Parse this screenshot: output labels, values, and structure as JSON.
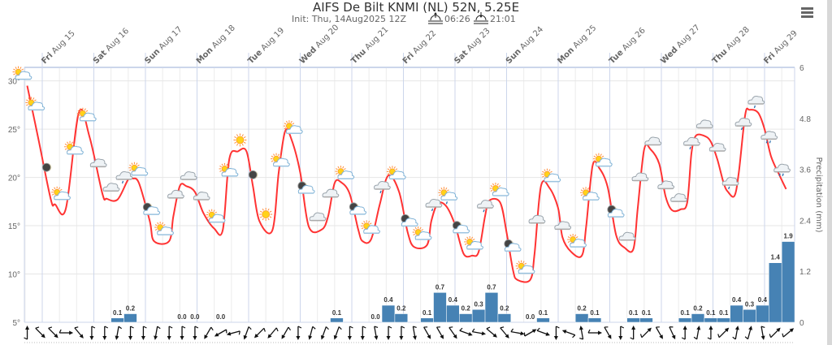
{
  "title": "AIFS De Bilt KNMI (NL) 52N, 5.25E",
  "subtitle": {
    "init": "Init: Thu, 14Aug2025 12Z",
    "sunrise": "06:26",
    "sunset": "21:01"
  },
  "menu_icon": "hamburger-icon",
  "colors": {
    "temperature": "#ff3333",
    "precipitation": "#4682b4",
    "grid": "#e6e6e6",
    "plot_border": "#ccd6eb"
  },
  "chart_data": {
    "type": "line+bar",
    "title": "AIFS De Bilt KNMI (NL) 52N, 5.25E",
    "x_range": [
      "Aug 14 14:00",
      "Aug 29 14:00"
    ],
    "days": [
      {
        "wd": "Fri",
        "date": "Aug 15",
        "t": "Aug 15 00:00"
      },
      {
        "wd": "Sat",
        "date": "Aug 16",
        "t": "Aug 16 00:00"
      },
      {
        "wd": "Sun",
        "date": "Aug 17",
        "t": "Aug 17 00:00"
      },
      {
        "wd": "Mon",
        "date": "Aug 18",
        "t": "Aug 18 00:00"
      },
      {
        "wd": "Tue",
        "date": "Aug 19",
        "t": "Aug 19 00:00"
      },
      {
        "wd": "Wed",
        "date": "Aug 20",
        "t": "Aug 20 00:00"
      },
      {
        "wd": "Thu",
        "date": "Aug 21",
        "t": "Aug 21 00:00"
      },
      {
        "wd": "Fri",
        "date": "Aug 22",
        "t": "Aug 22 00:00"
      },
      {
        "wd": "Sat",
        "date": "Aug 23",
        "t": "Aug 23 00:00"
      },
      {
        "wd": "Sun",
        "date": "Aug 24",
        "t": "Aug 24 00:00"
      },
      {
        "wd": "Mon",
        "date": "Aug 25",
        "t": "Aug 25 00:00"
      },
      {
        "wd": "Tue",
        "date": "Aug 26",
        "t": "Aug 26 00:00"
      },
      {
        "wd": "Wed",
        "date": "Aug 27",
        "t": "Aug 27 00:00"
      },
      {
        "wd": "Thu",
        "date": "Aug 28",
        "t": "Aug 28 00:00"
      },
      {
        "wd": "Fri",
        "date": "Aug 29",
        "t": "Aug 29 00:00"
      }
    ],
    "temperature_axis": {
      "ticks": [
        "5°",
        "10°",
        "15°",
        "20°",
        "25°",
        "30°"
      ],
      "tick_values": [
        5,
        10,
        15,
        20,
        25,
        30
      ],
      "range": [
        5,
        31.4
      ]
    },
    "precip_axis": {
      "title": "Precipitation (mm)",
      "ticks": [
        "0",
        "1.2",
        "2.4",
        "3.6",
        "4.8",
        "6"
      ],
      "tick_values": [
        0,
        1.2,
        2.4,
        3.6,
        4.8,
        6
      ],
      "range": [
        0,
        6
      ]
    },
    "temperature": [
      [
        "Aug 14 17:00",
        29.5
      ],
      [
        "Aug 14 22:00",
        24.2
      ],
      [
        "Aug 15 04:00",
        17.7
      ],
      [
        "Aug 15 06:00",
        17.2
      ],
      [
        "Aug 15 11:00",
        16.8
      ],
      [
        "Aug 15 17:00",
        26.7
      ],
      [
        "Aug 15 22:00",
        24.2
      ],
      [
        "Aug 16 04:00",
        18.3
      ],
      [
        "Aug 16 06:00",
        17.8
      ],
      [
        "Aug 16 11:00",
        17.7
      ],
      [
        "Aug 16 16:00",
        19.8
      ],
      [
        "Aug 16 18:00",
        19.9
      ],
      [
        "Aug 16 21:00",
        19.4
      ],
      [
        "Aug 17 02:00",
        15.5
      ],
      [
        "Aug 17 04:00",
        13.4
      ],
      [
        "Aug 17 11:00",
        13.4
      ],
      [
        "Aug 17 13:00",
        16.0
      ],
      [
        "Aug 17 16:00",
        19.1
      ],
      [
        "Aug 17 19:00",
        19.1
      ],
      [
        "Aug 17 23:00",
        18.5
      ],
      [
        "Aug 18 03:00",
        16.3
      ],
      [
        "Aug 18 08:00",
        14.7
      ],
      [
        "Aug 18 12:00",
        14.6
      ],
      [
        "Aug 18 15:00",
        21.9
      ],
      [
        "Aug 18 19:00",
        22.7
      ],
      [
        "Aug 18 23:00",
        22.7
      ],
      [
        "Aug 19 02:00",
        19.1
      ],
      [
        "Aug 19 05:00",
        15.5
      ],
      [
        "Aug 19 11:00",
        14.5
      ],
      [
        "Aug 19 14:00",
        20.5
      ],
      [
        "Aug 19 17:00",
        24.8
      ],
      [
        "Aug 19 20:00",
        23.9
      ],
      [
        "Aug 20 00:00",
        20.5
      ],
      [
        "Aug 20 04:00",
        14.9
      ],
      [
        "Aug 20 10:00",
        14.6
      ],
      [
        "Aug 20 13:00",
        16.0
      ],
      [
        "Aug 20 16:00",
        19.4
      ],
      [
        "Aug 20 19:00",
        19.5
      ],
      [
        "Aug 20 23:00",
        18.3
      ],
      [
        "Aug 21 03:00",
        14.6
      ],
      [
        "Aug 21 05:00",
        13.4
      ],
      [
        "Aug 21 09:00",
        13.6
      ],
      [
        "Aug 21 13:00",
        17.2
      ],
      [
        "Aug 21 17:00",
        20.2
      ],
      [
        "Aug 21 22:00",
        18.5
      ],
      [
        "Aug 22 02:00",
        14.3
      ],
      [
        "Aug 22 05:00",
        12.8
      ],
      [
        "Aug 22 11:00",
        13.0
      ],
      [
        "Aug 22 13:00",
        15.5
      ],
      [
        "Aug 22 16:00",
        17.3
      ],
      [
        "Aug 22 20:00",
        17.0
      ],
      [
        "Aug 23 00:00",
        15.1
      ],
      [
        "Aug 23 04:00",
        12.1
      ],
      [
        "Aug 23 08:00",
        11.9
      ],
      [
        "Aug 23 11:00",
        12.3
      ],
      [
        "Aug 23 14:00",
        16.0
      ],
      [
        "Aug 23 16:00",
        17.6
      ],
      [
        "Aug 23 21:00",
        17.4
      ],
      [
        "Aug 24 00:00",
        14.3
      ],
      [
        "Aug 24 03:00",
        10.4
      ],
      [
        "Aug 24 05:00",
        9.4
      ],
      [
        "Aug 24 11:00",
        9.4
      ],
      [
        "Aug 24 13:00",
        12.1
      ],
      [
        "Aug 24 16:00",
        19.1
      ],
      [
        "Aug 24 20:00",
        18.9
      ],
      [
        "Aug 25 00:00",
        16.8
      ],
      [
        "Aug 25 02:00",
        13.8
      ],
      [
        "Aug 25 06:00",
        12.3
      ],
      [
        "Aug 25 11:00",
        11.9
      ],
      [
        "Aug 25 13:00",
        14.9
      ],
      [
        "Aug 25 16:00",
        21.2
      ],
      [
        "Aug 25 19:00",
        21.0
      ],
      [
        "Aug 25 23:00",
        19.0
      ],
      [
        "Aug 26 03:00",
        14.0
      ],
      [
        "Aug 26 07:00",
        12.7
      ],
      [
        "Aug 26 11:00",
        12.6
      ],
      [
        "Aug 26 13:00",
        16.8
      ],
      [
        "Aug 26 16:00",
        22.9
      ],
      [
        "Aug 26 19:00",
        22.9
      ],
      [
        "Aug 26 23:00",
        21.4
      ],
      [
        "Aug 27 02:00",
        18.0
      ],
      [
        "Aug 27 05:00",
        16.6
      ],
      [
        "Aug 27 09:00",
        16.7
      ],
      [
        "Aug 27 12:00",
        17.4
      ],
      [
        "Aug 27 14:00",
        22.5
      ],
      [
        "Aug 27 16:00",
        24.3
      ],
      [
        "Aug 27 20:00",
        24.3
      ],
      [
        "Aug 27 23:00",
        23.7
      ],
      [
        "Aug 28 02:00",
        21.9
      ],
      [
        "Aug 28 05:00",
        19.4
      ],
      [
        "Aug 28 07:00",
        18.5
      ],
      [
        "Aug 28 10:00",
        18.1
      ],
      [
        "Aug 28 12:00",
        20.5
      ],
      [
        "Aug 28 15:00",
        26.5
      ],
      [
        "Aug 28 17:00",
        27.0
      ],
      [
        "Aug 28 21:00",
        26.7
      ],
      [
        "Aug 29 00:00",
        25.0
      ],
      [
        "Aug 29 03:00",
        22.2
      ],
      [
        "Aug 29 07:00",
        20.2
      ],
      [
        "Aug 29 10:00",
        18.8
      ]
    ],
    "precipitation": [
      {
        "t": "Aug 16 08:00",
        "v": 0.1,
        "label": "0.1"
      },
      {
        "t": "Aug 16 14:00",
        "v": 0.2,
        "label": "0.2"
      },
      {
        "t": "Aug 17 14:00",
        "v": 0.0,
        "label": "0.0"
      },
      {
        "t": "Aug 17 20:00",
        "v": 0.0,
        "label": "0.0"
      },
      {
        "t": "Aug 18 08:00",
        "v": 0.0,
        "label": "0.0"
      },
      {
        "t": "Aug 20 14:00",
        "v": 0.1,
        "label": "0.1"
      },
      {
        "t": "Aug 21 08:00",
        "v": 0.0,
        "label": "0.0"
      },
      {
        "t": "Aug 21 14:00",
        "v": 0.4,
        "label": "0.4"
      },
      {
        "t": "Aug 21 20:00",
        "v": 0.2,
        "label": "0.2"
      },
      {
        "t": "Aug 22 08:00",
        "v": 0.1,
        "label": "0.1"
      },
      {
        "t": "Aug 22 14:00",
        "v": 0.7,
        "label": "0.7"
      },
      {
        "t": "Aug 22 20:00",
        "v": 0.4,
        "label": "0.4"
      },
      {
        "t": "Aug 23 02:00",
        "v": 0.2,
        "label": "0.2"
      },
      {
        "t": "Aug 23 08:00",
        "v": 0.3,
        "label": "0.3"
      },
      {
        "t": "Aug 23 14:00",
        "v": 0.7,
        "label": "0.7"
      },
      {
        "t": "Aug 23 20:00",
        "v": 0.2,
        "label": "0.2"
      },
      {
        "t": "Aug 24 08:00",
        "v": 0.0,
        "label": "0.0"
      },
      {
        "t": "Aug 24 14:00",
        "v": 0.1,
        "label": "0.1"
      },
      {
        "t": "Aug 25 08:00",
        "v": 0.2,
        "label": "0.2"
      },
      {
        "t": "Aug 25 14:00",
        "v": 0.1,
        "label": "0.1"
      },
      {
        "t": "Aug 26 08:00",
        "v": 0.1,
        "label": "0.1"
      },
      {
        "t": "Aug 26 14:00",
        "v": 0.1,
        "label": "0.1"
      },
      {
        "t": "Aug 27 08:00",
        "v": 0.1,
        "label": "0.1"
      },
      {
        "t": "Aug 27 14:00",
        "v": 0.2,
        "label": "0.2"
      },
      {
        "t": "Aug 27 20:00",
        "v": 0.1,
        "label": "0.1"
      },
      {
        "t": "Aug 28 02:00",
        "v": 0.1,
        "label": "0.1"
      },
      {
        "t": "Aug 28 08:00",
        "v": 0.4,
        "label": "0.4"
      },
      {
        "t": "Aug 28 14:00",
        "v": 0.3,
        "label": "0.3"
      },
      {
        "t": "Aug 28 20:00",
        "v": 0.4,
        "label": "0.4"
      },
      {
        "t": "Aug 29 02:00",
        "v": 1.4,
        "label": "1.4"
      },
      {
        "t": "Aug 29 08:00",
        "v": 1.9,
        "label": "1.9"
      }
    ],
    "forecast": [
      {
        "t": "Aug 14 14:00",
        "icon": "partly-sunny",
        "wind": 0
      },
      {
        "t": "Aug 14 20:00",
        "icon": "partly-sunny",
        "wind": 135
      },
      {
        "t": "Aug 15 02:00",
        "icon": "moon",
        "wind": 135
      },
      {
        "t": "Aug 15 08:00",
        "icon": "partly-sunny",
        "wind": 90
      },
      {
        "t": "Aug 15 14:00",
        "icon": "partly-sunny",
        "wind": 140
      },
      {
        "t": "Aug 15 20:00",
        "icon": "partly-sunny",
        "wind": 180
      },
      {
        "t": "Aug 16 02:00",
        "icon": "cloud",
        "wind": 180
      },
      {
        "t": "Aug 16 08:00",
        "icon": "cloud",
        "wind": 190
      },
      {
        "t": "Aug 16 14:00",
        "icon": "rain",
        "wind": 180
      },
      {
        "t": "Aug 16 20:00",
        "icon": "partly-sunny",
        "wind": 180
      },
      {
        "t": "Aug 17 02:00",
        "icon": "moon-cloud",
        "wind": 190
      },
      {
        "t": "Aug 17 08:00",
        "icon": "partly-sunny",
        "wind": 180
      },
      {
        "t": "Aug 17 14:00",
        "icon": "cloud",
        "wind": 180
      },
      {
        "t": "Aug 17 20:00",
        "icon": "cloud",
        "wind": 180
      },
      {
        "t": "Aug 18 02:00",
        "icon": "cloud",
        "wind": 210
      },
      {
        "t": "Aug 18 08:00",
        "icon": "partly-sunny",
        "wind": 240
      },
      {
        "t": "Aug 18 14:00",
        "icon": "partly-sunny",
        "wind": 255
      },
      {
        "t": "Aug 18 20:00",
        "icon": "sun",
        "wind": 200
      },
      {
        "t": "Aug 19 02:00",
        "icon": "moon",
        "wind": 225
      },
      {
        "t": "Aug 19 08:00",
        "icon": "sun",
        "wind": 220
      },
      {
        "t": "Aug 19 14:00",
        "icon": "partly-sunny",
        "wind": 210
      },
      {
        "t": "Aug 19 20:00",
        "icon": "partly-sunny",
        "wind": 180
      },
      {
        "t": "Aug 20 02:00",
        "icon": "moon-cloud",
        "wind": 195
      },
      {
        "t": "Aug 20 08:00",
        "icon": "cloud",
        "wind": 200
      },
      {
        "t": "Aug 20 14:00",
        "icon": "cloud",
        "wind": 200
      },
      {
        "t": "Aug 20 20:00",
        "icon": "partly-sunny",
        "wind": 180
      },
      {
        "t": "Aug 21 02:00",
        "icon": "moon-cloud",
        "wind": 180
      },
      {
        "t": "Aug 21 08:00",
        "icon": "partly-sunny",
        "wind": 170
      },
      {
        "t": "Aug 21 14:00",
        "icon": "rain",
        "wind": 180
      },
      {
        "t": "Aug 21 20:00",
        "icon": "partly-sunny",
        "wind": 180
      },
      {
        "t": "Aug 22 02:00",
        "icon": "moon-cloud",
        "wind": 170
      },
      {
        "t": "Aug 22 08:00",
        "icon": "partly-sunny",
        "wind": 150
      },
      {
        "t": "Aug 22 14:00",
        "icon": "rain",
        "wind": 150
      },
      {
        "t": "Aug 22 20:00",
        "icon": "partly-sunny-rain",
        "wind": 145
      },
      {
        "t": "Aug 23 02:00",
        "icon": "moon-cloud",
        "wind": 110
      },
      {
        "t": "Aug 23 08:00",
        "icon": "partly-sunny",
        "wind": 100
      },
      {
        "t": "Aug 23 14:00",
        "icon": "rain",
        "wind": 130
      },
      {
        "t": "Aug 23 20:00",
        "icon": "partly-sunny",
        "wind": 140
      },
      {
        "t": "Aug 24 02:00",
        "icon": "moon-cloud",
        "wind": 100
      },
      {
        "t": "Aug 24 08:00",
        "icon": "partly-sunny",
        "wind": 60
      },
      {
        "t": "Aug 24 14:00",
        "icon": "cloud",
        "wind": 110
      },
      {
        "t": "Aug 24 20:00",
        "icon": "partly-sunny",
        "wind": 180
      },
      {
        "t": "Aug 25 02:00",
        "icon": "cloud",
        "wind": 290
      },
      {
        "t": "Aug 25 08:00",
        "icon": "partly-sunny",
        "wind": 350
      },
      {
        "t": "Aug 25 14:00",
        "icon": "partly-sunny",
        "wind": 90
      },
      {
        "t": "Aug 25 20:00",
        "icon": "partly-sunny",
        "wind": 150
      },
      {
        "t": "Aug 26 02:00",
        "icon": "moon-cloud",
        "wind": 180
      },
      {
        "t": "Aug 26 08:00",
        "icon": "cloud",
        "wind": 0
      },
      {
        "t": "Aug 26 14:00",
        "icon": "cloud",
        "wind": 45
      },
      {
        "t": "Aug 26 20:00",
        "icon": "cloud",
        "wind": 150
      },
      {
        "t": "Aug 27 02:00",
        "icon": "cloud",
        "wind": 155
      },
      {
        "t": "Aug 27 08:00",
        "icon": "cloud",
        "wind": 0
      },
      {
        "t": "Aug 27 14:00",
        "icon": "rain",
        "wind": 10
      },
      {
        "t": "Aug 27 20:00",
        "icon": "cloud",
        "wind": 0
      },
      {
        "t": "Aug 28 02:00",
        "icon": "cloud",
        "wind": 45
      },
      {
        "t": "Aug 28 08:00",
        "icon": "rain",
        "wind": 10
      },
      {
        "t": "Aug 28 14:00",
        "icon": "rain",
        "wind": 15
      },
      {
        "t": "Aug 28 20:00",
        "icon": "rain",
        "wind": 170
      },
      {
        "t": "Aug 29 02:00",
        "icon": "showers",
        "wind": 45
      },
      {
        "t": "Aug 29 08:00",
        "icon": "showers",
        "wind": 50
      }
    ]
  }
}
